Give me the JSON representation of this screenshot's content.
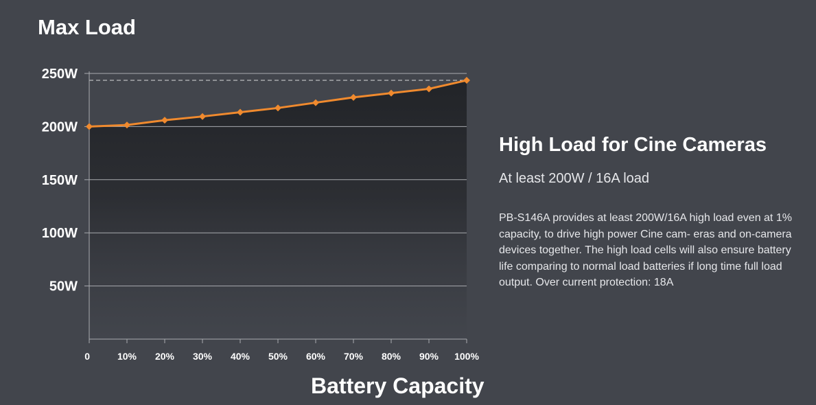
{
  "title": "Max Load",
  "side": {
    "heading": "High Load for Cine Cameras",
    "subheading": "At least 200W / 16A load",
    "body": "PB-S146A provides at least 200W/16A high load even at 1% capacity, to drive high power Cine cam- eras and on-camera devices together. The high load cells will also ensure battery life comparing to normal load batteries if long time full load output. Over current protection: 18A"
  },
  "chart_data": {
    "type": "line",
    "title": "Max Load",
    "xlabel": "Battery Capacity",
    "ylabel": "",
    "x": [
      0,
      10,
      20,
      30,
      40,
      50,
      60,
      70,
      80,
      90,
      100
    ],
    "x_tick_labels": [
      "0",
      "10%",
      "20%",
      "30%",
      "40%",
      "50%",
      "60%",
      "70%",
      "80%",
      "90%",
      "100%"
    ],
    "series": [
      {
        "values": [
          200,
          201.5,
          206,
          209.5,
          213.5,
          217.5,
          222.5,
          227.5,
          231.5,
          235.5,
          243.5
        ]
      }
    ],
    "y_ticks": [
      50,
      100,
      150,
      200,
      250
    ],
    "y_tick_labels": [
      "50W",
      "100W",
      "150W",
      "200W",
      "250W"
    ],
    "xlim": [
      0,
      100
    ],
    "ylim": [
      0,
      250
    ],
    "reference_line": 243.5,
    "grid": true,
    "colors": {
      "line": "#f08a2e",
      "background": "#42454c",
      "grid": "#a9abb0",
      "area_top": "#23252a"
    }
  }
}
